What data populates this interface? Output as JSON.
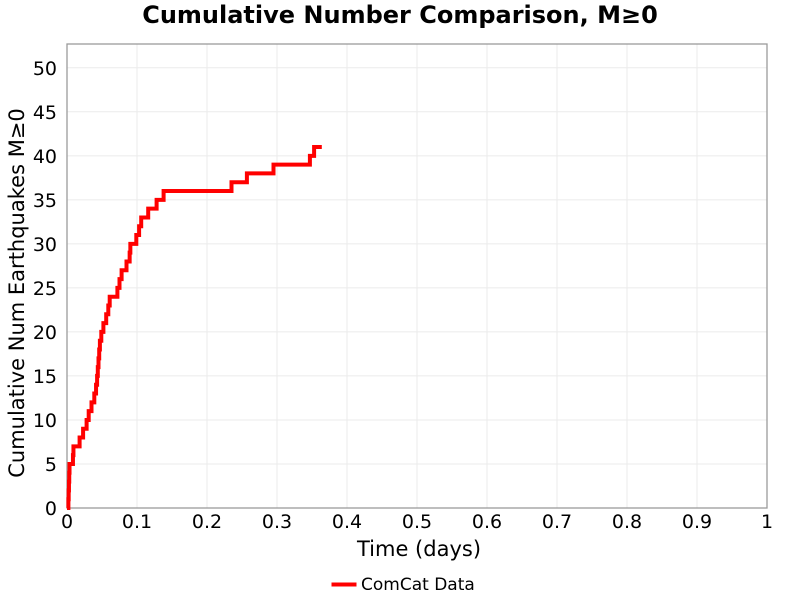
{
  "chart_data": {
    "type": "line",
    "subtype": "cumulative-step",
    "title": "Cumulative Number Comparison, M≥0",
    "xlabel": "Time (days)",
    "ylabel": "Cumulative Num Earthquakes M≥0",
    "xlim": [
      0,
      1
    ],
    "ylim": [
      0,
      52.7
    ],
    "xticks": [
      0,
      0.1,
      0.2,
      0.3,
      0.4,
      0.5,
      0.6,
      0.7,
      0.8,
      0.9,
      1
    ],
    "xtick_labels": [
      "0",
      "0.1",
      "0.2",
      "0.3",
      "0.4",
      "0.5",
      "0.6",
      "0.7",
      "0.8",
      "0.9",
      "1"
    ],
    "yticks": [
      0,
      5,
      10,
      15,
      20,
      25,
      30,
      35,
      40,
      45,
      50
    ],
    "ytick_labels": [
      "0",
      "5",
      "10",
      "15",
      "20",
      "25",
      "30",
      "35",
      "40",
      "45",
      "50"
    ],
    "grid": true,
    "legend": {
      "position": "bottom-center-outside",
      "entries": [
        {
          "label": "ComCat Data",
          "color": "#ff0000"
        }
      ]
    },
    "series": [
      {
        "name": "ComCat Data",
        "color": "#ff0000",
        "line_width": 4,
        "style": "step-post",
        "start_point": [
          0,
          0
        ],
        "event_times_days": [
          0.002,
          0.0024,
          0.0028,
          0.0032,
          0.0036,
          0.0085,
          0.0092,
          0.018,
          0.023,
          0.028,
          0.031,
          0.035,
          0.039,
          0.0415,
          0.043,
          0.044,
          0.045,
          0.046,
          0.047,
          0.049,
          0.052,
          0.056,
          0.059,
          0.061,
          0.072,
          0.075,
          0.078,
          0.085,
          0.0895,
          0.0905,
          0.099,
          0.103,
          0.106,
          0.116,
          0.128,
          0.138,
          0.235,
          0.257,
          0.295,
          0.347,
          0.353
        ],
        "end_time_days": 0.364,
        "final_cumulative_count": 41
      }
    ]
  },
  "colors": {
    "background": "#ffffff",
    "grid": "#ebebeb",
    "panel_border": "#9b9b9b",
    "text": "#000000",
    "series_red": "#ff0000"
  }
}
